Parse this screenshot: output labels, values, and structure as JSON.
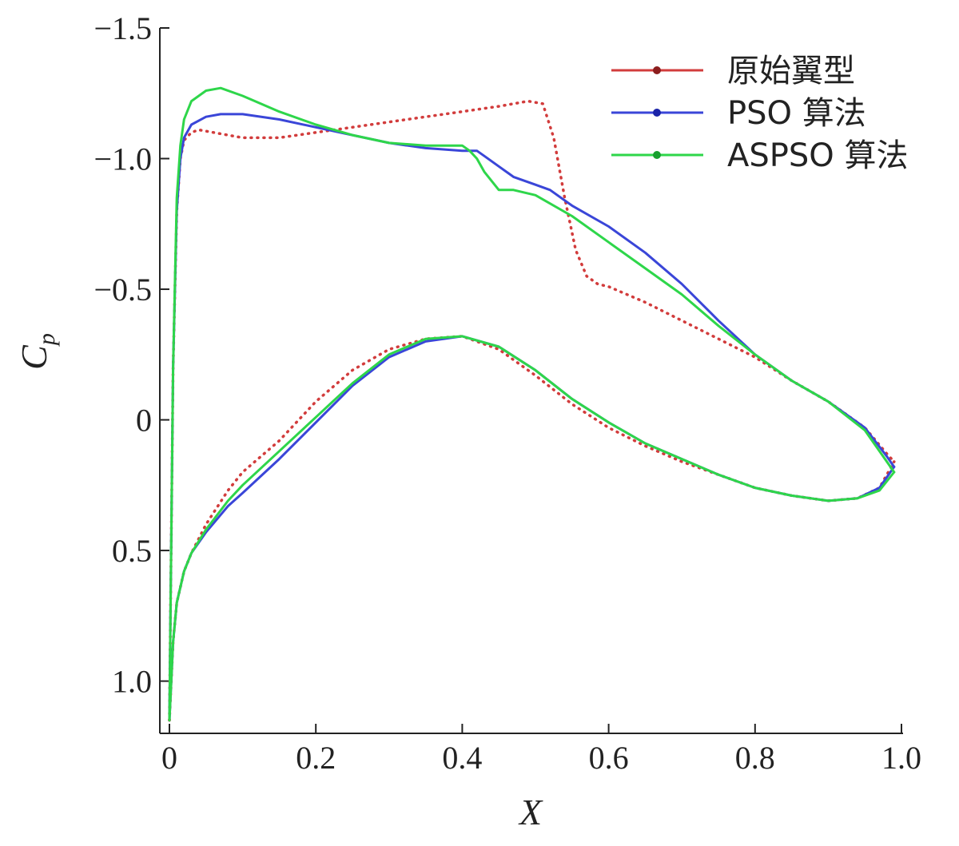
{
  "chart_data": {
    "type": "line",
    "title": "",
    "xlabel": "X",
    "ylabel_main": "C",
    "ylabel_sub": "p",
    "xlim": [
      0,
      1.0
    ],
    "ylim_top": -1.5,
    "ylim_bottom": 1.2,
    "y_inverted": true,
    "grid": false,
    "legend_position": "top-right",
    "x_ticks": [
      {
        "value": 0,
        "label": "0"
      },
      {
        "value": 0.2,
        "label": "0.2"
      },
      {
        "value": 0.4,
        "label": "0.4"
      },
      {
        "value": 0.6,
        "label": "0.6"
      },
      {
        "value": 0.8,
        "label": "0.8"
      },
      {
        "value": 1.0,
        "label": "1.0"
      }
    ],
    "y_ticks": [
      {
        "value": -1.5,
        "label": "−1.5"
      },
      {
        "value": -1.0,
        "label": "−1.0"
      },
      {
        "value": -0.5,
        "label": "−0.5"
      },
      {
        "value": 0,
        "label": "0"
      },
      {
        "value": 0.5,
        "label": "0.5"
      },
      {
        "value": 1.0,
        "label": "1.0"
      }
    ],
    "series": [
      {
        "name": "原始翼型",
        "color": "#d23c3c",
        "style": "dotted",
        "upper": [
          [
            0,
            1.15
          ],
          [
            0.002,
            0.6
          ],
          [
            0.005,
            -0.2
          ],
          [
            0.01,
            -0.8
          ],
          [
            0.015,
            -1.0
          ],
          [
            0.02,
            -1.07
          ],
          [
            0.03,
            -1.1
          ],
          [
            0.04,
            -1.11
          ],
          [
            0.06,
            -1.1
          ],
          [
            0.1,
            -1.08
          ],
          [
            0.15,
            -1.08
          ],
          [
            0.2,
            -1.1
          ],
          [
            0.25,
            -1.12
          ],
          [
            0.3,
            -1.14
          ],
          [
            0.35,
            -1.16
          ],
          [
            0.4,
            -1.18
          ],
          [
            0.45,
            -1.2
          ],
          [
            0.49,
            -1.22
          ],
          [
            0.51,
            -1.21
          ],
          [
            0.525,
            -1.08
          ],
          [
            0.54,
            -0.85
          ],
          [
            0.555,
            -0.65
          ],
          [
            0.57,
            -0.55
          ],
          [
            0.585,
            -0.52
          ],
          [
            0.6,
            -0.51
          ],
          [
            0.65,
            -0.45
          ],
          [
            0.7,
            -0.38
          ],
          [
            0.75,
            -0.31
          ],
          [
            0.8,
            -0.24
          ],
          [
            0.85,
            -0.15
          ],
          [
            0.9,
            -0.07
          ],
          [
            0.95,
            0.03
          ],
          [
            0.98,
            0.13
          ],
          [
            0.99,
            0.16
          ]
        ],
        "lower": [
          [
            0,
            1.15
          ],
          [
            0.005,
            0.85
          ],
          [
            0.01,
            0.7
          ],
          [
            0.02,
            0.58
          ],
          [
            0.03,
            0.51
          ],
          [
            0.05,
            0.4
          ],
          [
            0.08,
            0.27
          ],
          [
            0.1,
            0.2
          ],
          [
            0.15,
            0.08
          ],
          [
            0.2,
            -0.07
          ],
          [
            0.25,
            -0.19
          ],
          [
            0.3,
            -0.27
          ],
          [
            0.35,
            -0.31
          ],
          [
            0.4,
            -0.32
          ],
          [
            0.45,
            -0.27
          ],
          [
            0.5,
            -0.17
          ],
          [
            0.55,
            -0.06
          ],
          [
            0.6,
            0.03
          ],
          [
            0.65,
            0.1
          ],
          [
            0.7,
            0.16
          ],
          [
            0.75,
            0.21
          ],
          [
            0.8,
            0.26
          ],
          [
            0.85,
            0.29
          ],
          [
            0.9,
            0.31
          ],
          [
            0.94,
            0.3
          ],
          [
            0.97,
            0.26
          ],
          [
            0.99,
            0.16
          ]
        ]
      },
      {
        "name": "PSO 算法",
        "color": "#3a46d8",
        "style": "solid",
        "upper": [
          [
            0,
            1.15
          ],
          [
            0.002,
            0.6
          ],
          [
            0.005,
            -0.2
          ],
          [
            0.01,
            -0.8
          ],
          [
            0.015,
            -1.0
          ],
          [
            0.02,
            -1.08
          ],
          [
            0.03,
            -1.13
          ],
          [
            0.05,
            -1.16
          ],
          [
            0.07,
            -1.17
          ],
          [
            0.1,
            -1.17
          ],
          [
            0.15,
            -1.15
          ],
          [
            0.2,
            -1.12
          ],
          [
            0.25,
            -1.09
          ],
          [
            0.3,
            -1.06
          ],
          [
            0.35,
            -1.04
          ],
          [
            0.4,
            -1.03
          ],
          [
            0.42,
            -1.03
          ],
          [
            0.43,
            -1.01
          ],
          [
            0.45,
            -0.97
          ],
          [
            0.47,
            -0.93
          ],
          [
            0.5,
            -0.9
          ],
          [
            0.52,
            -0.88
          ],
          [
            0.55,
            -0.82
          ],
          [
            0.6,
            -0.74
          ],
          [
            0.65,
            -0.64
          ],
          [
            0.7,
            -0.52
          ],
          [
            0.75,
            -0.38
          ],
          [
            0.8,
            -0.25
          ],
          [
            0.85,
            -0.15
          ],
          [
            0.9,
            -0.07
          ],
          [
            0.95,
            0.03
          ],
          [
            0.98,
            0.14
          ],
          [
            0.99,
            0.18
          ]
        ],
        "lower": [
          [
            0,
            1.15
          ],
          [
            0.005,
            0.85
          ],
          [
            0.01,
            0.7
          ],
          [
            0.02,
            0.58
          ],
          [
            0.03,
            0.51
          ],
          [
            0.05,
            0.43
          ],
          [
            0.08,
            0.33
          ],
          [
            0.1,
            0.28
          ],
          [
            0.15,
            0.15
          ],
          [
            0.2,
            0.01
          ],
          [
            0.25,
            -0.13
          ],
          [
            0.3,
            -0.24
          ],
          [
            0.35,
            -0.3
          ],
          [
            0.4,
            -0.32
          ],
          [
            0.45,
            -0.28
          ],
          [
            0.5,
            -0.19
          ],
          [
            0.55,
            -0.08
          ],
          [
            0.6,
            0.01
          ],
          [
            0.65,
            0.09
          ],
          [
            0.7,
            0.15
          ],
          [
            0.75,
            0.21
          ],
          [
            0.8,
            0.26
          ],
          [
            0.85,
            0.29
          ],
          [
            0.9,
            0.31
          ],
          [
            0.94,
            0.3
          ],
          [
            0.97,
            0.26
          ],
          [
            0.99,
            0.18
          ]
        ]
      },
      {
        "name": "ASPSO 算法",
        "color": "#2ed64a",
        "style": "solid",
        "upper": [
          [
            0,
            1.15
          ],
          [
            0.002,
            0.6
          ],
          [
            0.005,
            -0.2
          ],
          [
            0.01,
            -0.85
          ],
          [
            0.015,
            -1.05
          ],
          [
            0.02,
            -1.15
          ],
          [
            0.03,
            -1.22
          ],
          [
            0.05,
            -1.26
          ],
          [
            0.07,
            -1.27
          ],
          [
            0.1,
            -1.24
          ],
          [
            0.15,
            -1.18
          ],
          [
            0.2,
            -1.13
          ],
          [
            0.25,
            -1.09
          ],
          [
            0.3,
            -1.06
          ],
          [
            0.35,
            -1.05
          ],
          [
            0.38,
            -1.05
          ],
          [
            0.4,
            -1.05
          ],
          [
            0.41,
            -1.03
          ],
          [
            0.42,
            -1.0
          ],
          [
            0.43,
            -0.95
          ],
          [
            0.45,
            -0.88
          ],
          [
            0.47,
            -0.88
          ],
          [
            0.5,
            -0.86
          ],
          [
            0.55,
            -0.78
          ],
          [
            0.6,
            -0.68
          ],
          [
            0.65,
            -0.58
          ],
          [
            0.7,
            -0.48
          ],
          [
            0.75,
            -0.36
          ],
          [
            0.8,
            -0.25
          ],
          [
            0.85,
            -0.15
          ],
          [
            0.9,
            -0.07
          ],
          [
            0.95,
            0.04
          ],
          [
            0.98,
            0.16
          ],
          [
            0.99,
            0.2
          ]
        ],
        "lower": [
          [
            0,
            1.15
          ],
          [
            0.005,
            0.85
          ],
          [
            0.01,
            0.7
          ],
          [
            0.02,
            0.58
          ],
          [
            0.03,
            0.51
          ],
          [
            0.05,
            0.42
          ],
          [
            0.08,
            0.31
          ],
          [
            0.1,
            0.25
          ],
          [
            0.15,
            0.12
          ],
          [
            0.2,
            -0.01
          ],
          [
            0.25,
            -0.14
          ],
          [
            0.3,
            -0.25
          ],
          [
            0.35,
            -0.31
          ],
          [
            0.4,
            -0.32
          ],
          [
            0.45,
            -0.28
          ],
          [
            0.5,
            -0.19
          ],
          [
            0.55,
            -0.08
          ],
          [
            0.6,
            0.01
          ],
          [
            0.65,
            0.09
          ],
          [
            0.7,
            0.15
          ],
          [
            0.75,
            0.21
          ],
          [
            0.8,
            0.26
          ],
          [
            0.85,
            0.29
          ],
          [
            0.9,
            0.31
          ],
          [
            0.94,
            0.3
          ],
          [
            0.97,
            0.27
          ],
          [
            0.99,
            0.2
          ]
        ]
      }
    ]
  }
}
